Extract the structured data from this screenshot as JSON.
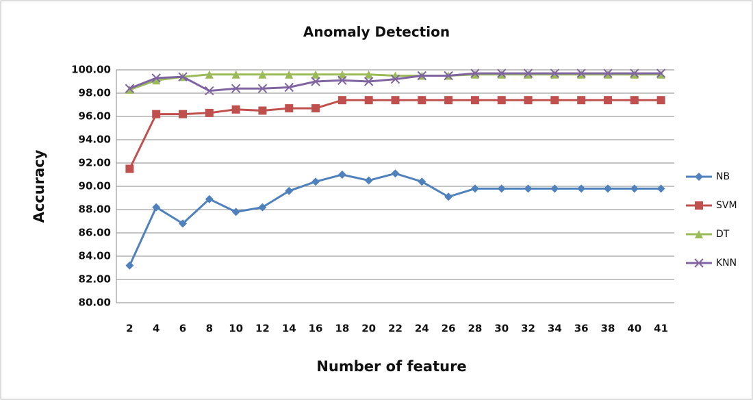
{
  "chart_data": {
    "type": "line",
    "title": "Anomaly Detection",
    "x_label": "Number of feature",
    "y_label": "Accuracy",
    "categories": [
      "2",
      "4",
      "6",
      "8",
      "10",
      "12",
      "14",
      "16",
      "18",
      "20",
      "22",
      "24",
      "26",
      "28",
      "30",
      "32",
      "34",
      "36",
      "38",
      "40",
      "41"
    ],
    "series": [
      {
        "name": "NB",
        "color": "#4f81bd",
        "marker": "diamond",
        "values": [
          83.2,
          88.2,
          86.8,
          88.9,
          87.8,
          88.2,
          89.6,
          90.4,
          91.0,
          90.5,
          91.1,
          90.4,
          89.1,
          89.8,
          89.8,
          89.8,
          89.8,
          89.8,
          89.8,
          89.8,
          89.8
        ]
      },
      {
        "name": "SVM",
        "color": "#c0504d",
        "marker": "square",
        "values": [
          91.5,
          96.2,
          96.2,
          96.3,
          96.6,
          96.5,
          96.7,
          96.7,
          97.4,
          97.4,
          97.4,
          97.4,
          97.4,
          97.4,
          97.4,
          97.4,
          97.4,
          97.4,
          97.4,
          97.4,
          97.4
        ]
      },
      {
        "name": "DT",
        "color": "#9bbb59",
        "marker": "triangle",
        "values": [
          98.3,
          99.1,
          99.4,
          99.6,
          99.6,
          99.6,
          99.6,
          99.6,
          99.6,
          99.6,
          99.5,
          99.5,
          99.5,
          99.6,
          99.6,
          99.6,
          99.6,
          99.6,
          99.6,
          99.6,
          99.6
        ]
      },
      {
        "name": "KNN",
        "color": "#8064a2",
        "marker": "x",
        "values": [
          98.4,
          99.3,
          99.4,
          98.2,
          98.4,
          98.4,
          98.5,
          99.0,
          99.1,
          99.0,
          99.2,
          99.5,
          99.5,
          99.7,
          99.7,
          99.7,
          99.7,
          99.7,
          99.7,
          99.7,
          99.7
        ]
      }
    ],
    "ylim": [
      80,
      100
    ],
    "yticks": [
      {
        "value": 80,
        "label": "80.00"
      },
      {
        "value": 82,
        "label": "82.00"
      },
      {
        "value": 84,
        "label": "84.00"
      },
      {
        "value": 86,
        "label": "86.00"
      },
      {
        "value": 88,
        "label": "88.00"
      },
      {
        "value": 90,
        "label": "90.00"
      },
      {
        "value": 92,
        "label": "92.00"
      },
      {
        "value": 94,
        "label": "94.00"
      },
      {
        "value": 96,
        "label": "96.00"
      },
      {
        "value": 98,
        "label": "98.00"
      },
      {
        "value": 100,
        "label": "100.00"
      }
    ],
    "grid": true,
    "legend": "right"
  }
}
